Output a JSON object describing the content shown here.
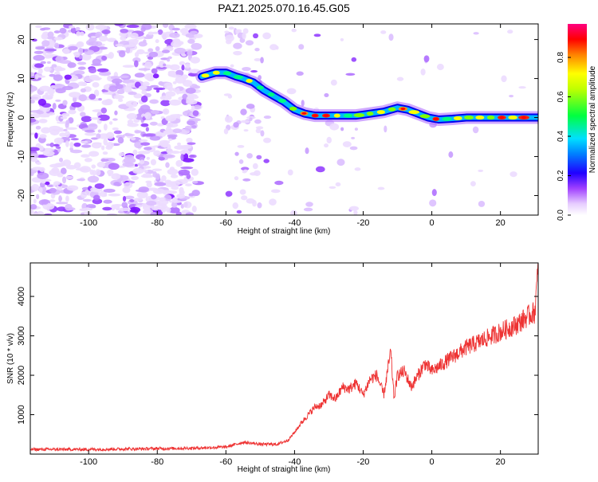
{
  "title": "PAZ1.2025.070.16.45.G05",
  "chart_data": [
    {
      "type": "heatmap",
      "xlabel": "Height of straight line (km)",
      "ylabel": "Frequency (Hz)",
      "xlim": [
        -117,
        31
      ],
      "ylim": [
        -25,
        24
      ],
      "x_ticks": [
        -100,
        -80,
        -60,
        -40,
        -20,
        0,
        20
      ],
      "y_ticks": [
        -20,
        -10,
        0,
        10,
        20
      ],
      "colorbar": {
        "label": "Normalized spectral amplitude",
        "ticks": [
          0.0,
          0.2,
          0.4,
          0.6,
          0.8
        ],
        "range": [
          0,
          0.97
        ],
        "colormap": [
          "#ffffff",
          "#d8b0ff",
          "#8000ff",
          "#0000ff",
          "#00c0ff",
          "#00ff60",
          "#ffff00",
          "#ff8000",
          "#ff0000",
          "#ff0080"
        ]
      },
      "ridge": {
        "x": [
          -67,
          -63,
          -60,
          -57,
          -55,
          -52,
          -49,
          -46,
          -43,
          -40,
          -37,
          -34,
          -30,
          -26,
          -22,
          -18,
          -14,
          -10,
          -7,
          -4,
          -1,
          2,
          6,
          10,
          15,
          20,
          25,
          31
        ],
        "y": [
          10.5,
          11.5,
          11.5,
          10.5,
          10,
          9,
          7,
          5.5,
          4,
          2,
          1,
          0.5,
          0.5,
          0.5,
          0.5,
          1,
          1.5,
          2.5,
          2,
          1,
          0,
          -0.5,
          -0.3,
          0,
          0,
          0,
          0,
          0
        ]
      }
    },
    {
      "type": "line",
      "xlabel": "Height of straight line (km)",
      "ylabel": "SNR (10 * v/v)",
      "xlim": [
        -117,
        31
      ],
      "ylim": [
        0,
        4850
      ],
      "x_ticks": [
        -100,
        -80,
        -60,
        -40,
        -20,
        0,
        20
      ],
      "y_ticks": [
        1000,
        2000,
        3000,
        4000
      ],
      "series": [
        {
          "color": "#ee3333",
          "x": [
            -117,
            -100,
            -80,
            -70,
            -60,
            -55,
            -50,
            -45,
            -42,
            -40,
            -38,
            -36,
            -34,
            -32,
            -30,
            -28,
            -26,
            -24,
            -22,
            -20,
            -18,
            -16,
            -14,
            -12,
            -11,
            -10,
            -8,
            -6,
            -4,
            -2,
            0,
            5,
            10,
            15,
            20,
            25,
            28,
            30,
            31
          ],
          "y": [
            120,
            120,
            140,
            150,
            180,
            300,
            250,
            250,
            350,
            550,
            800,
            1000,
            1200,
            1250,
            1500,
            1400,
            1700,
            1650,
            1800,
            1500,
            1900,
            2000,
            1500,
            2600,
            1400,
            2000,
            2100,
            1700,
            2000,
            2300,
            2100,
            2400,
            2700,
            2900,
            3100,
            3300,
            3500,
            3600,
            4700
          ]
        }
      ]
    }
  ]
}
